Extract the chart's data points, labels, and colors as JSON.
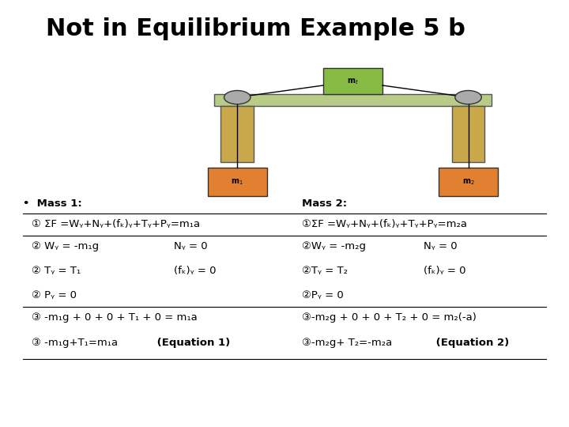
{
  "title": "Not in Equilibrium Example 5 b",
  "title_fontsize": 22,
  "bg_color": "#ffffff",
  "fs": 9.5,
  "bullet": "•",
  "circle1": "①",
  "circle2": "②",
  "circle3": "③",
  "sigma": "Σ",
  "sub_y": "ᵧ",
  "sub_k": "ₖ",
  "sub_1": "₁",
  "sub_2": "₂",
  "sub_t": "ₜ"
}
